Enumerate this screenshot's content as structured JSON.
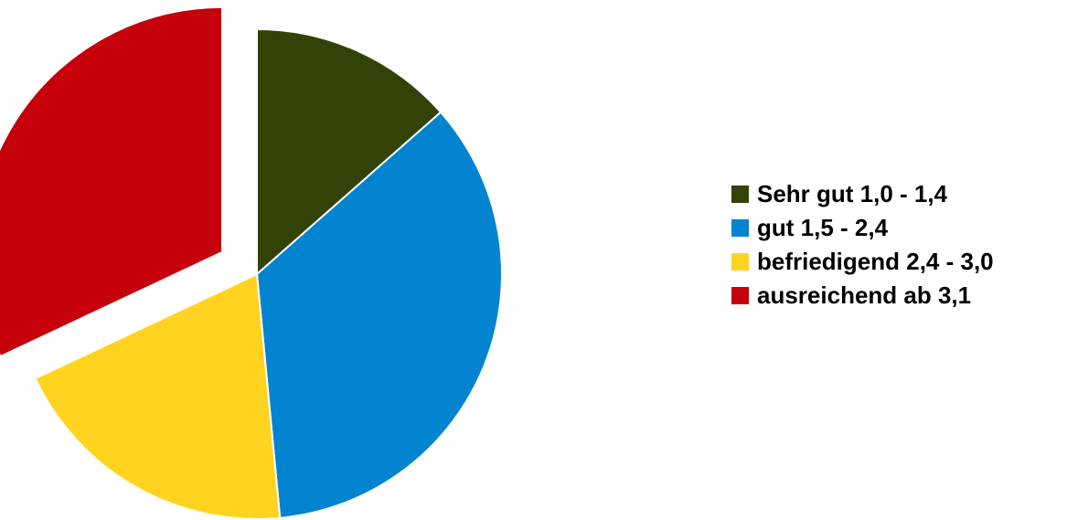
{
  "chart_data": {
    "type": "pie",
    "start_angle_deg": 0,
    "direction": "clockwise",
    "exploded_slice": 3,
    "slices": [
      {
        "label": "Sehr gut 1,0 - 1,4",
        "value": 13.5,
        "color": "#334206"
      },
      {
        "label": "gut 1,5 - 2,4",
        "value": 35.0,
        "color": "#0284D0"
      },
      {
        "label": "befriedigend 2,4 - 3,0",
        "value": 19.5,
        "color": "#FFD320"
      },
      {
        "label": "ausreichend ab 3,1",
        "value": 32.0,
        "color": "#C5000B"
      }
    ],
    "legend_position": "right"
  }
}
